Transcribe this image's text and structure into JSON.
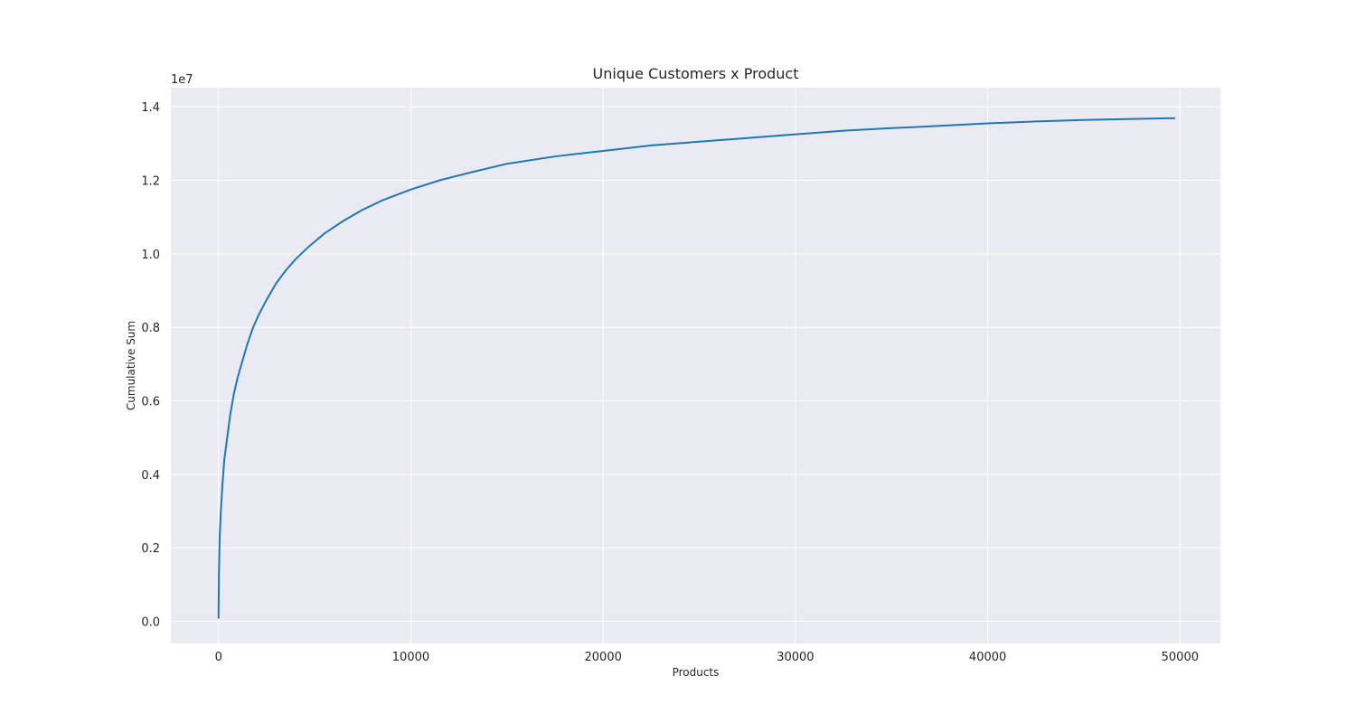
{
  "chart_data": {
    "type": "line",
    "title": "Unique Customers x Product",
    "xlabel": "Products",
    "ylabel": "Cumulative Sum",
    "y_offset_label": "1e7",
    "xlim": [
      -2480,
      52100
    ],
    "ylim": [
      -0.06,
      1.452
    ],
    "y_scale_note": "values in units of 1e7",
    "grid": true,
    "legend": "none",
    "colors": {
      "plot_background": "#eaeaf2",
      "grid": "#ffffff",
      "line": "#1f77b4",
      "text": "#262626"
    },
    "x_ticks": [
      {
        "value": 0,
        "label": "0"
      },
      {
        "value": 10000,
        "label": "10000"
      },
      {
        "value": 20000,
        "label": "20000"
      },
      {
        "value": 30000,
        "label": "30000"
      },
      {
        "value": 40000,
        "label": "40000"
      },
      {
        "value": 50000,
        "label": "50000"
      }
    ],
    "y_ticks": [
      {
        "value": 0.0,
        "label": "0.0"
      },
      {
        "value": 0.2,
        "label": "0.2"
      },
      {
        "value": 0.4,
        "label": "0.4"
      },
      {
        "value": 0.6,
        "label": "0.6"
      },
      {
        "value": 0.8,
        "label": "0.8"
      },
      {
        "value": 1.0,
        "label": "1.0"
      },
      {
        "value": 1.2,
        "label": "1.2"
      },
      {
        "value": 1.4,
        "label": "1.4"
      }
    ],
    "series": [
      {
        "name": "Cumulative Sum",
        "x": [
          0,
          20,
          60,
          120,
          200,
          300,
          450,
          600,
          800,
          1000,
          1250,
          1500,
          1800,
          2100,
          2500,
          3000,
          3500,
          4000,
          4700,
          5500,
          6500,
          7500,
          8500,
          10000,
          11500,
          13000,
          15000,
          17500,
          20000,
          22500,
          25000,
          27500,
          30000,
          32500,
          35000,
          37500,
          40000,
          42500,
          45000,
          47500,
          49700
        ],
        "y": [
          0.01,
          0.13,
          0.23,
          0.3,
          0.37,
          0.44,
          0.5,
          0.56,
          0.62,
          0.665,
          0.71,
          0.755,
          0.8,
          0.835,
          0.875,
          0.92,
          0.955,
          0.985,
          1.02,
          1.055,
          1.09,
          1.12,
          1.145,
          1.175,
          1.2,
          1.22,
          1.245,
          1.265,
          1.28,
          1.295,
          1.305,
          1.315,
          1.325,
          1.335,
          1.342,
          1.348,
          1.355,
          1.36,
          1.364,
          1.367,
          1.369
        ]
      }
    ]
  }
}
